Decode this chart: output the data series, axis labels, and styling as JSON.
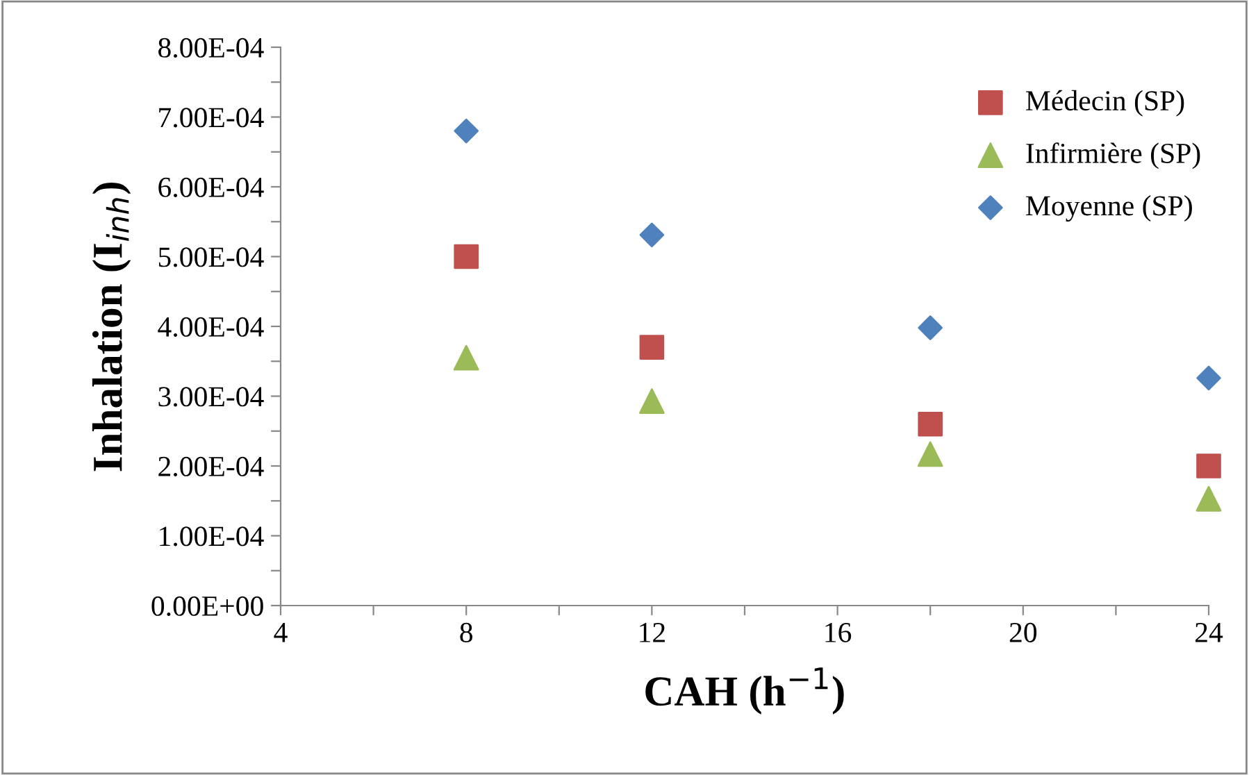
{
  "chart_data": {
    "type": "scatter",
    "xlabel": "CAH (h$^{−1}$)",
    "ylabel": "Inhalation (I$_{inh}$)",
    "xlim": [
      4,
      24
    ],
    "ylim": [
      0,
      0.0008
    ],
    "xticks": [
      4,
      {
        "value": 6,
        "label": null
      },
      8,
      {
        "value": 10,
        "label": null
      },
      12,
      {
        "value": 14,
        "label": null
      },
      16,
      {
        "value": 18,
        "label": null
      },
      20,
      {
        "value": 22,
        "label": null
      },
      24
    ],
    "yticks": [
      {
        "value": 0,
        "label": "0.00E+00"
      },
      {
        "value": 5e-05,
        "label": null
      },
      {
        "value": 0.0001,
        "label": "1.00E-04"
      },
      {
        "value": 0.00015,
        "label": null
      },
      {
        "value": 0.0002,
        "label": "2.00E-04"
      },
      {
        "value": 0.00025,
        "label": null
      },
      {
        "value": 0.0003,
        "label": "3.00E-04"
      },
      {
        "value": 0.00035,
        "label": null
      },
      {
        "value": 0.0004,
        "label": "4.00E-04"
      },
      {
        "value": 0.00045,
        "label": null
      },
      {
        "value": 0.0005,
        "label": "5.00E-04"
      },
      {
        "value": 0.00055,
        "label": null
      },
      {
        "value": 0.0006,
        "label": "6.00E-04"
      },
      {
        "value": 0.00065,
        "label": null
      },
      {
        "value": 0.0007,
        "label": "7.00E-04"
      },
      {
        "value": 0.00075,
        "label": null
      },
      {
        "value": 0.0008,
        "label": "8.00E-04"
      }
    ],
    "x": [
      8,
      12,
      18,
      24
    ],
    "grid": false,
    "legend": "top right",
    "series": [
      {
        "name": "Médecin (SP)",
        "color": "#c0504d",
        "marker": "square",
        "values": [
          0.0005,
          0.00037,
          0.00026,
          0.0002
        ]
      },
      {
        "name": "Infirmière (SP)",
        "color": "#9bbb59",
        "marker": "triangle",
        "values": [
          0.000355,
          0.000293,
          0.000217,
          0.000153
        ]
      },
      {
        "name": "Moyenne (SP)",
        "color": "#4f81bd",
        "marker": "diamond",
        "values": [
          0.00068,
          0.000531,
          0.000398,
          0.000326
        ]
      }
    ]
  }
}
